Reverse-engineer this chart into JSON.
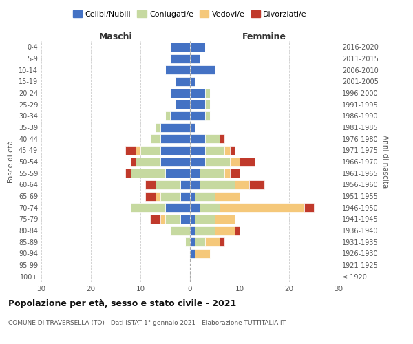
{
  "age_groups": [
    "100+",
    "95-99",
    "90-94",
    "85-89",
    "80-84",
    "75-79",
    "70-74",
    "65-69",
    "60-64",
    "55-59",
    "50-54",
    "45-49",
    "40-44",
    "35-39",
    "30-34",
    "25-29",
    "20-24",
    "15-19",
    "10-14",
    "5-9",
    "0-4"
  ],
  "birth_years": [
    "≤ 1920",
    "1921-1925",
    "1926-1930",
    "1931-1935",
    "1936-1940",
    "1941-1945",
    "1946-1950",
    "1951-1955",
    "1956-1960",
    "1961-1965",
    "1966-1970",
    "1971-1975",
    "1976-1980",
    "1981-1985",
    "1986-1990",
    "1991-1995",
    "1996-2000",
    "2001-2005",
    "2006-2010",
    "2011-2015",
    "2016-2020"
  ],
  "colors": {
    "celibe": "#4472C4",
    "coniugato": "#C6D9A0",
    "vedovo": "#F5C87A",
    "divorziato": "#C0392B"
  },
  "maschi": {
    "celibe": [
      0,
      0,
      0,
      0,
      0,
      2,
      5,
      2,
      2,
      5,
      6,
      6,
      6,
      6,
      4,
      3,
      4,
      3,
      5,
      4,
      4
    ],
    "coniugato": [
      0,
      0,
      0,
      1,
      4,
      3,
      7,
      4,
      5,
      7,
      5,
      4,
      2,
      1,
      1,
      0,
      0,
      0,
      0,
      0,
      0
    ],
    "vedovo": [
      0,
      0,
      0,
      0,
      0,
      1,
      0,
      1,
      0,
      0,
      0,
      1,
      0,
      0,
      0,
      0,
      0,
      0,
      0,
      0,
      0
    ],
    "divorziato": [
      0,
      0,
      0,
      0,
      0,
      2,
      0,
      2,
      2,
      1,
      1,
      2,
      0,
      0,
      0,
      0,
      0,
      0,
      0,
      0,
      0
    ]
  },
  "femmine": {
    "nubile": [
      0,
      0,
      1,
      1,
      1,
      1,
      2,
      1,
      2,
      2,
      3,
      3,
      3,
      1,
      3,
      3,
      3,
      1,
      5,
      2,
      3
    ],
    "coniugata": [
      0,
      0,
      0,
      2,
      4,
      4,
      4,
      4,
      7,
      5,
      5,
      4,
      3,
      0,
      1,
      1,
      1,
      0,
      0,
      0,
      0
    ],
    "vedova": [
      0,
      0,
      3,
      3,
      4,
      4,
      17,
      5,
      3,
      1,
      2,
      1,
      0,
      0,
      0,
      0,
      0,
      0,
      0,
      0,
      0
    ],
    "divorziata": [
      0,
      0,
      0,
      1,
      1,
      0,
      2,
      0,
      3,
      2,
      3,
      1,
      1,
      0,
      0,
      0,
      0,
      0,
      0,
      0,
      0
    ]
  },
  "xlim": 30,
  "title": "Popolazione per età, sesso e stato civile - 2021",
  "subtitle": "COMUNE DI TRAVERSELLA (TO) - Dati ISTAT 1° gennaio 2021 - Elaborazione TUTTITALIA.IT",
  "ylabel_left": "Fasce di età",
  "ylabel_right": "Anni di nascita",
  "xlabel_maschi": "Maschi",
  "xlabel_femmine": "Femmine"
}
